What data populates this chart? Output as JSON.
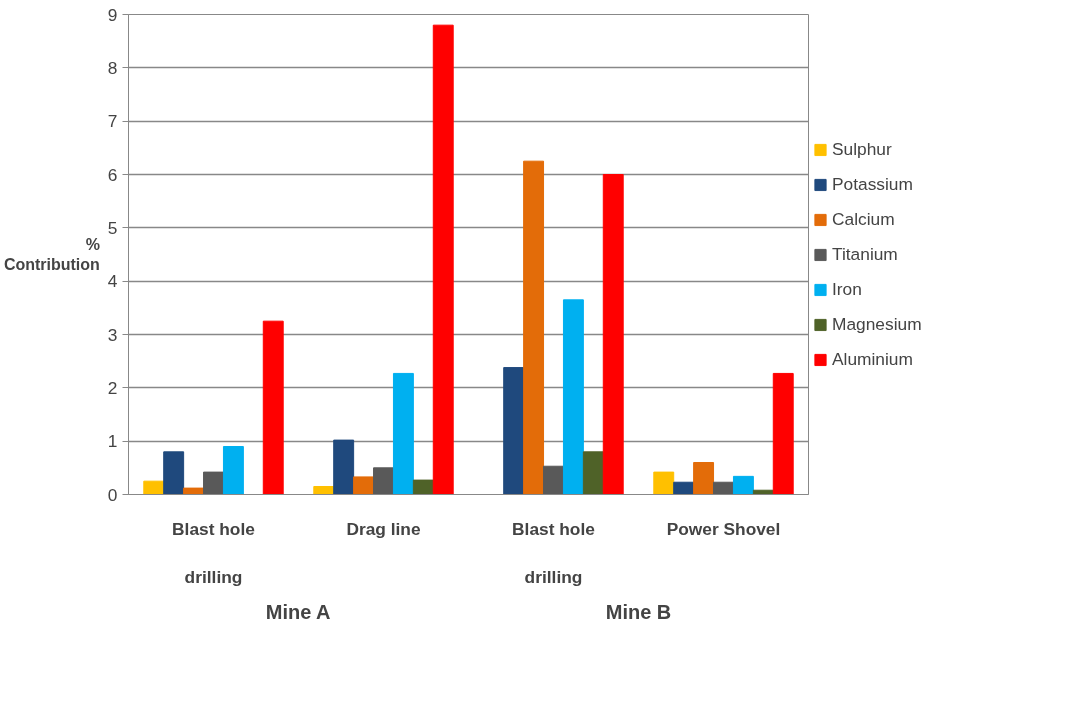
{
  "chart_data": {
    "type": "bar",
    "ylabel": "%\nContribution",
    "categories": [
      "Blast hole drilling",
      "Drag line",
      "Blast hole drilling",
      "Power Shovel"
    ],
    "series": [
      {
        "name": "Sulphur",
        "color": "#ffc000",
        "values": [
          0.25,
          0.15,
          null,
          0.42
        ]
      },
      {
        "name": "Potassium",
        "color": "#1f497d",
        "values": [
          0.8,
          1.02,
          2.38,
          0.23
        ]
      },
      {
        "name": "Calcium",
        "color": "#e36c09",
        "values": [
          0.12,
          0.33,
          6.25,
          0.6
        ]
      },
      {
        "name": "Titanium",
        "color": "#595959",
        "values": [
          0.42,
          0.5,
          0.53,
          0.23
        ]
      },
      {
        "name": "Iron",
        "color": "#00b0f0",
        "values": [
          0.9,
          2.27,
          3.65,
          0.34
        ]
      },
      {
        "name": "Magnesium",
        "color": "#4f6228",
        "values": [
          null,
          0.27,
          0.8,
          0.08
        ]
      },
      {
        "name": "Aluminium",
        "color": "#ff0000",
        "values": [
          3.25,
          8.8,
          6.0,
          2.27
        ]
      }
    ],
    "annotations": [
      "Mine A",
      "Mine B"
    ],
    "ylim": [
      0,
      9
    ],
    "yticks": [
      0,
      1,
      2,
      3,
      4,
      5,
      6,
      7,
      8,
      9
    ],
    "grid": "y",
    "legend": "right"
  }
}
